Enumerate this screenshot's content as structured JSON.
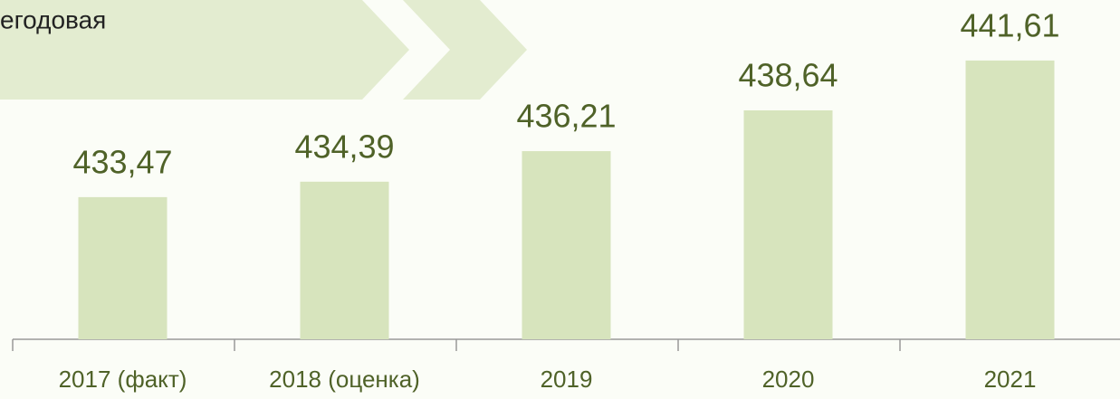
{
  "chart_data": {
    "type": "bar",
    "subtitle": "егодовая",
    "categories": [
      "2017 (факт)",
      "2018 (оценка)",
      "2019",
      "2020",
      "2021"
    ],
    "values": [
      433.47,
      434.39,
      436.21,
      438.64,
      441.61
    ],
    "value_labels": [
      "433,47",
      "434,39",
      "436,21",
      "438,64",
      "441,61"
    ],
    "color": "#d7e4bd",
    "ylim": [
      425,
      445
    ]
  }
}
